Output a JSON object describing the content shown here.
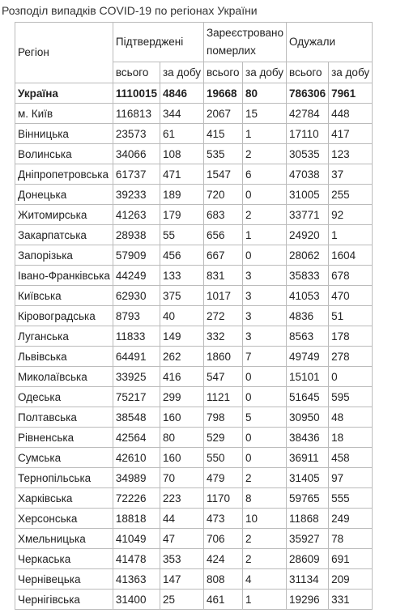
{
  "caption": "Розподіл випадків COVID-19 по регіонах України",
  "headers": {
    "region": "Регіон",
    "confirmed": "Підтверджені",
    "deaths": "Зареєстровано померлих",
    "recovered": "Одужали",
    "total": "всього",
    "daily": "за добу"
  },
  "rows": [
    {
      "region": "Україна",
      "c_total": "1110015",
      "c_daily": "4846",
      "d_total": "19668",
      "d_daily": "80",
      "r_total": "786306",
      "r_daily": "7961"
    },
    {
      "region": "м. Київ",
      "c_total": "116813",
      "c_daily": "344",
      "d_total": "2067",
      "d_daily": "15",
      "r_total": "42784",
      "r_daily": "448"
    },
    {
      "region": "Вінницька",
      "c_total": "23573",
      "c_daily": "61",
      "d_total": "415",
      "d_daily": "1",
      "r_total": "17110",
      "r_daily": "417"
    },
    {
      "region": "Волинська",
      "c_total": "34066",
      "c_daily": "108",
      "d_total": "535",
      "d_daily": "2",
      "r_total": "30535",
      "r_daily": "123"
    },
    {
      "region": "Дніпропетровська",
      "c_total": "61737",
      "c_daily": "471",
      "d_total": "1547",
      "d_daily": "6",
      "r_total": "47038",
      "r_daily": "37"
    },
    {
      "region": "Донецька",
      "c_total": "39233",
      "c_daily": "189",
      "d_total": "720",
      "d_daily": "0",
      "r_total": "31005",
      "r_daily": "255"
    },
    {
      "region": "Житомирська",
      "c_total": "41263",
      "c_daily": "179",
      "d_total": "683",
      "d_daily": "2",
      "r_total": "33771",
      "r_daily": "92"
    },
    {
      "region": "Закарпатська",
      "c_total": "28938",
      "c_daily": "55",
      "d_total": "656",
      "d_daily": "1",
      "r_total": "24920",
      "r_daily": "1"
    },
    {
      "region": "Запорізька",
      "c_total": "57909",
      "c_daily": "456",
      "d_total": "667",
      "d_daily": "0",
      "r_total": "28062",
      "r_daily": "1604"
    },
    {
      "region": "Івано-Франківська",
      "c_total": "44249",
      "c_daily": "133",
      "d_total": "831",
      "d_daily": "3",
      "r_total": "35833",
      "r_daily": "678"
    },
    {
      "region": "Київська",
      "c_total": "62930",
      "c_daily": "375",
      "d_total": "1017",
      "d_daily": "3",
      "r_total": "41053",
      "r_daily": "470"
    },
    {
      "region": "Кіровоградська",
      "c_total": "8793",
      "c_daily": "40",
      "d_total": "272",
      "d_daily": "3",
      "r_total": "4836",
      "r_daily": "51"
    },
    {
      "region": "Луганська",
      "c_total": "11833",
      "c_daily": "149",
      "d_total": "332",
      "d_daily": "3",
      "r_total": "8563",
      "r_daily": "178"
    },
    {
      "region": "Львівська",
      "c_total": "64491",
      "c_daily": "262",
      "d_total": "1860",
      "d_daily": "7",
      "r_total": "49749",
      "r_daily": "278"
    },
    {
      "region": "Миколаївська",
      "c_total": "33925",
      "c_daily": "416",
      "d_total": "547",
      "d_daily": "0",
      "r_total": "15101",
      "r_daily": "0"
    },
    {
      "region": "Одеська",
      "c_total": "75217",
      "c_daily": "299",
      "d_total": "1121",
      "d_daily": "0",
      "r_total": "51645",
      "r_daily": "595"
    },
    {
      "region": "Полтавська",
      "c_total": "38548",
      "c_daily": "160",
      "d_total": "798",
      "d_daily": "5",
      "r_total": "30950",
      "r_daily": "48"
    },
    {
      "region": "Рівненська",
      "c_total": "42564",
      "c_daily": "80",
      "d_total": "529",
      "d_daily": "0",
      "r_total": "38436",
      "r_daily": "18"
    },
    {
      "region": "Сумська",
      "c_total": "42610",
      "c_daily": "160",
      "d_total": "550",
      "d_daily": "0",
      "r_total": "36911",
      "r_daily": "458"
    },
    {
      "region": "Тернопільська",
      "c_total": "34989",
      "c_daily": "70",
      "d_total": "479",
      "d_daily": "2",
      "r_total": "31405",
      "r_daily": "97"
    },
    {
      "region": "Харківська",
      "c_total": "72226",
      "c_daily": "223",
      "d_total": "1170",
      "d_daily": "8",
      "r_total": "59765",
      "r_daily": "555"
    },
    {
      "region": "Херсонська",
      "c_total": "18818",
      "c_daily": "44",
      "d_total": "473",
      "d_daily": "10",
      "r_total": "11868",
      "r_daily": "249"
    },
    {
      "region": "Хмельницька",
      "c_total": "41049",
      "c_daily": "47",
      "d_total": "706",
      "d_daily": "2",
      "r_total": "35927",
      "r_daily": "78"
    },
    {
      "region": "Черкаська",
      "c_total": "41478",
      "c_daily": "353",
      "d_total": "424",
      "d_daily": "2",
      "r_total": "28609",
      "r_daily": "691"
    },
    {
      "region": "Чернівецька",
      "c_total": "41363",
      "c_daily": "147",
      "d_total": "808",
      "d_daily": "4",
      "r_total": "31134",
      "r_daily": "209"
    },
    {
      "region": "Чернігівська",
      "c_total": "31400",
      "c_daily": "25",
      "d_total": "461",
      "d_daily": "1",
      "r_total": "19296",
      "r_daily": "331"
    }
  ]
}
